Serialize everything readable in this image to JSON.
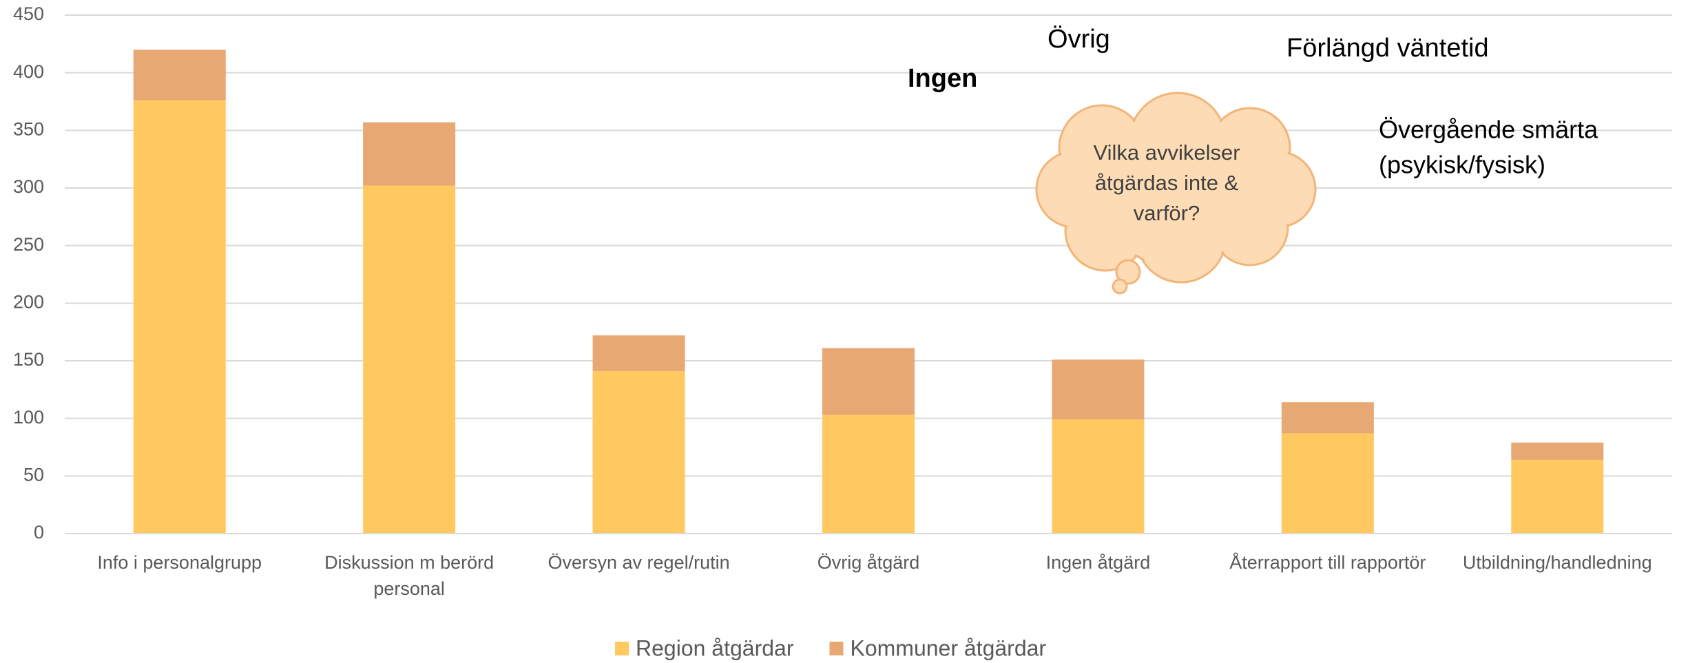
{
  "chart_data": {
    "type": "stacked_bar",
    "categories": [
      "Info i personalgrupp",
      "Diskussion m berörd personal",
      "Översyn av regel/rutin",
      "Övrig åtgärd",
      "Ingen åtgärd",
      "Återrapport till rapportör",
      "Utbildning/handledning"
    ],
    "series": [
      {
        "name": "Region åtgärdar",
        "color": "#FFC95F",
        "values": [
          376,
          302,
          141,
          103,
          99,
          87,
          64
        ]
      },
      {
        "name": "Kommuner åtgärdar",
        "color": "#E8A874",
        "values": [
          44,
          55,
          31,
          58,
          52,
          27,
          15
        ]
      }
    ],
    "ylim": [
      0,
      450
    ],
    "yticks": [
      0,
      50,
      100,
      150,
      200,
      250,
      300,
      350,
      400,
      450
    ],
    "grid": true,
    "legend": "bottom",
    "annotations": [
      {
        "text": "Övrig"
      },
      {
        "text": "Förlängd väntetid"
      },
      {
        "text": "Ingen"
      },
      {
        "lines": [
          "Övergående smärta",
          "(psykisk/fysisk)"
        ]
      }
    ],
    "callout": {
      "lines": [
        "Vilka avvikelser",
        "åtgärdas inte &",
        "varför?"
      ]
    }
  }
}
